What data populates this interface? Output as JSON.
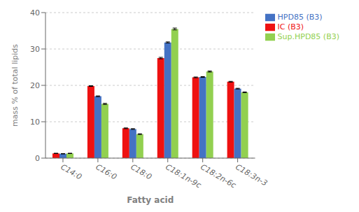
{
  "chart_data": {
    "type": "bar",
    "xlabel": "Fatty acid",
    "ylabel": "mass % of total lipids",
    "categories": [
      "C14:0",
      "C16:0",
      "C18:0",
      "C18:1n-9c",
      "C18:2n-6c",
      "C18:3n-3"
    ],
    "series": [
      {
        "name": "IC (B3)",
        "color": "#ee1111",
        "values": [
          1.3,
          19.8,
          8.2,
          27.5,
          22.2,
          21.0
        ],
        "errors": [
          0.05,
          0.1,
          0.1,
          0.2,
          0.1,
          0.1
        ]
      },
      {
        "name": "HPD85 (B3)",
        "color": "#4472c4",
        "values": [
          1.2,
          17.0,
          8.0,
          31.8,
          22.3,
          19.1
        ],
        "errors": [
          0.05,
          0.1,
          0.1,
          0.15,
          0.1,
          0.1
        ]
      },
      {
        "name": "Sup.HPD85 (B3)",
        "color": "#92d050",
        "values": [
          1.3,
          14.9,
          6.6,
          35.5,
          23.8,
          18.1
        ],
        "errors": [
          0.05,
          0.15,
          0.1,
          0.25,
          0.15,
          0.1
        ]
      }
    ],
    "ylim": [
      0,
      40
    ],
    "yticks": [
      0,
      10,
      20,
      30,
      40
    ],
    "grid": true,
    "legend": "right"
  }
}
